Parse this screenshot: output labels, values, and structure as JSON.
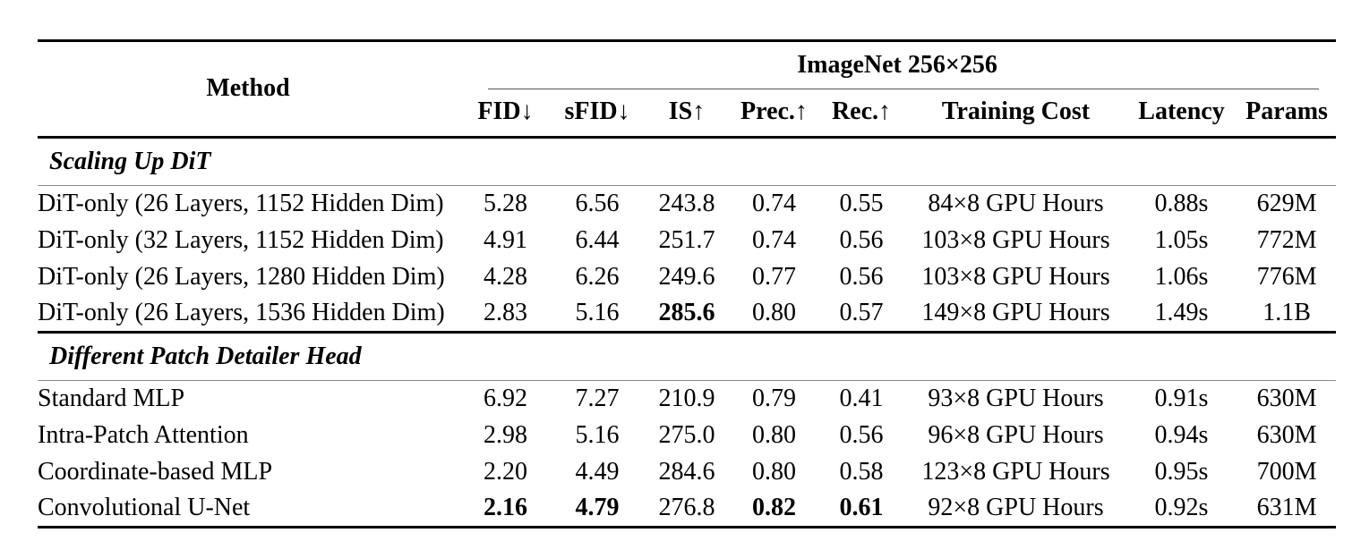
{
  "table": {
    "method_header": "Method",
    "group_header": "ImageNet 256×256",
    "columns": [
      "FID↓",
      "sFID↓",
      "IS↑",
      "Prec.↑",
      "Rec.↑",
      "Training Cost",
      "Latency",
      "Params"
    ],
    "sections": [
      {
        "title": "Scaling Up DiT",
        "rows": [
          {
            "method": "DiT-only (26 Layers, 1152 Hidden Dim)",
            "cells": [
              "5.28",
              "6.56",
              "243.8",
              "0.74",
              "0.55",
              "84×8 GPU Hours",
              "0.88s",
              "629M"
            ],
            "bold": []
          },
          {
            "method": "DiT-only (32 Layers, 1152 Hidden Dim)",
            "cells": [
              "4.91",
              "6.44",
              "251.7",
              "0.74",
              "0.56",
              "103×8 GPU Hours",
              "1.05s",
              "772M"
            ],
            "bold": []
          },
          {
            "method": "DiT-only (26 Layers, 1280 Hidden Dim)",
            "cells": [
              "4.28",
              "6.26",
              "249.6",
              "0.77",
              "0.56",
              "103×8 GPU Hours",
              "1.06s",
              "776M"
            ],
            "bold": []
          },
          {
            "method": "DiT-only (26 Layers, 1536 Hidden Dim)",
            "cells": [
              "2.83",
              "5.16",
              "285.6",
              "0.80",
              "0.57",
              "149×8 GPU Hours",
              "1.49s",
              "1.1B"
            ],
            "bold": [
              2
            ]
          }
        ]
      },
      {
        "title": "Different Patch Detailer Head",
        "rows": [
          {
            "method": "Standard MLP",
            "cells": [
              "6.92",
              "7.27",
              "210.9",
              "0.79",
              "0.41",
              "93×8 GPU Hours",
              "0.91s",
              "630M"
            ],
            "bold": []
          },
          {
            "method": "Intra-Patch Attention",
            "cells": [
              "2.98",
              "5.16",
              "275.0",
              "0.80",
              "0.56",
              "96×8 GPU Hours",
              "0.94s",
              "630M"
            ],
            "bold": []
          },
          {
            "method": "Coordinate-based MLP",
            "cells": [
              "2.20",
              "4.49",
              "284.6",
              "0.80",
              "0.58",
              "123×8 GPU Hours",
              "0.95s",
              "700M"
            ],
            "bold": []
          },
          {
            "method": "Convolutional U-Net",
            "cells": [
              "2.16",
              "4.79",
              "276.8",
              "0.82",
              "0.61",
              "92×8 GPU Hours",
              "0.92s",
              "631M"
            ],
            "bold": [
              0,
              1,
              3,
              4
            ]
          }
        ]
      }
    ]
  },
  "colors": {
    "text": "#000000",
    "rule_heavy": "#000000",
    "rule_light": "#8a8a8a",
    "rule_mid": "#555555",
    "background": "#ffffff"
  }
}
